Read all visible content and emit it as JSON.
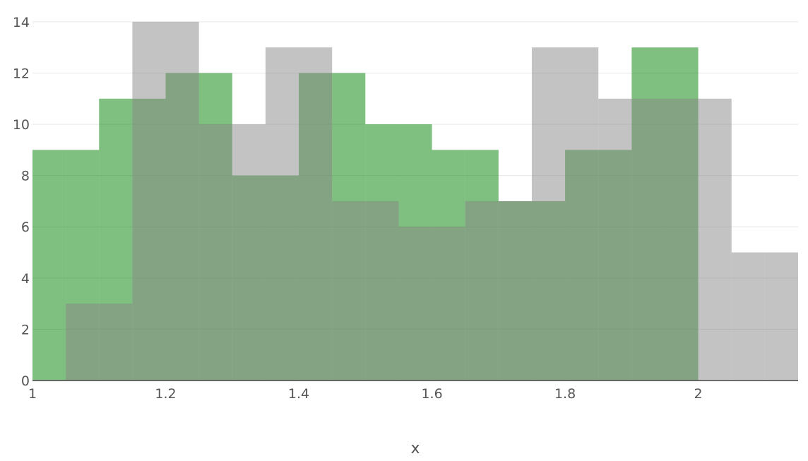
{
  "chart_data": {
    "type": "histogram",
    "xlabel": "x",
    "ylabel": "",
    "title": "",
    "barmode": "overlay",
    "bin_width": 0.05,
    "xlim": [
      1,
      2.15
    ],
    "ylim": [
      0,
      14.3
    ],
    "x_ticks": [
      1,
      1.2,
      1.4,
      1.6,
      1.8,
      2
    ],
    "x_tick_labels": [
      "1",
      "1.2",
      "1.4",
      "1.6",
      "1.8",
      "2"
    ],
    "y_ticks": [
      0,
      2,
      4,
      6,
      8,
      10,
      12,
      14
    ],
    "y_tick_labels": [
      "0",
      "2",
      "4",
      "6",
      "8",
      "10",
      "12",
      "14"
    ],
    "grid": true,
    "legend": "none",
    "series": [
      {
        "color": "#008000",
        "opacity": 0.5,
        "bins": [
          {
            "x0": 1.0,
            "count": 9
          },
          {
            "x0": 1.05,
            "count": 9
          },
          {
            "x0": 1.1,
            "count": 11
          },
          {
            "x0": 1.15,
            "count": 11
          },
          {
            "x0": 1.2,
            "count": 12
          },
          {
            "x0": 1.25,
            "count": 12
          },
          {
            "x0": 1.3,
            "count": 8
          },
          {
            "x0": 1.35,
            "count": 8
          },
          {
            "x0": 1.4,
            "count": 12
          },
          {
            "x0": 1.45,
            "count": 12
          },
          {
            "x0": 1.5,
            "count": 10
          },
          {
            "x0": 1.55,
            "count": 10
          },
          {
            "x0": 1.6,
            "count": 9
          },
          {
            "x0": 1.65,
            "count": 9
          },
          {
            "x0": 1.7,
            "count": 7
          },
          {
            "x0": 1.75,
            "count": 7
          },
          {
            "x0": 1.8,
            "count": 9
          },
          {
            "x0": 1.85,
            "count": 9
          },
          {
            "x0": 1.9,
            "count": 13
          },
          {
            "x0": 1.95,
            "count": 13
          }
        ]
      },
      {
        "color": "#888888",
        "opacity": 0.5,
        "bins": [
          {
            "x0": 1.05,
            "count": 3
          },
          {
            "x0": 1.1,
            "count": 3
          },
          {
            "x0": 1.15,
            "count": 14
          },
          {
            "x0": 1.2,
            "count": 14
          },
          {
            "x0": 1.25,
            "count": 10
          },
          {
            "x0": 1.3,
            "count": 10
          },
          {
            "x0": 1.35,
            "count": 13
          },
          {
            "x0": 1.4,
            "count": 13
          },
          {
            "x0": 1.45,
            "count": 7
          },
          {
            "x0": 1.5,
            "count": 7
          },
          {
            "x0": 1.55,
            "count": 6
          },
          {
            "x0": 1.6,
            "count": 6
          },
          {
            "x0": 1.65,
            "count": 7
          },
          {
            "x0": 1.7,
            "count": 7
          },
          {
            "x0": 1.75,
            "count": 13
          },
          {
            "x0": 1.8,
            "count": 13
          },
          {
            "x0": 1.85,
            "count": 11
          },
          {
            "x0": 1.9,
            "count": 11
          },
          {
            "x0": 1.95,
            "count": 11
          },
          {
            "x0": 2.0,
            "count": 11
          },
          {
            "x0": 2.05,
            "count": 5
          },
          {
            "x0": 2.1,
            "count": 5
          }
        ]
      }
    ]
  }
}
